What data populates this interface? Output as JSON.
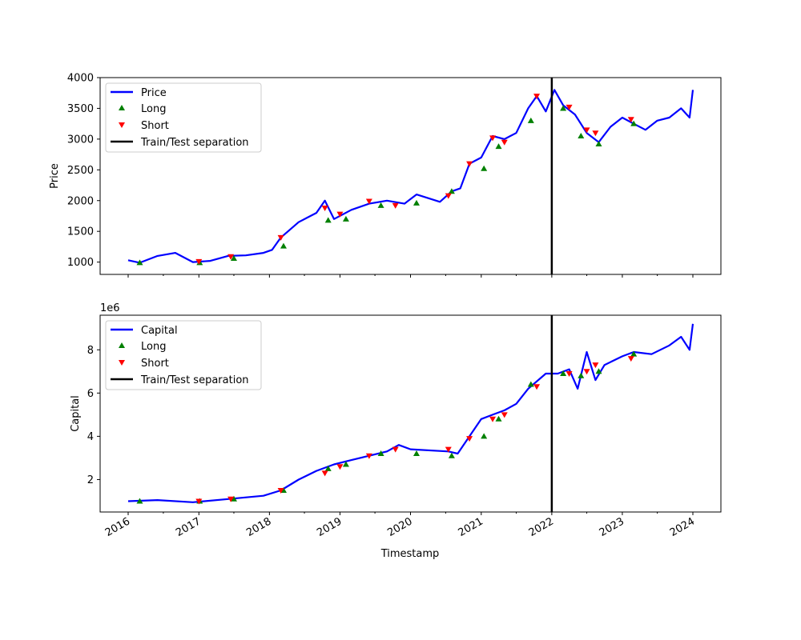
{
  "chart_data": [
    {
      "type": "line",
      "ylabel": "Price",
      "xlabel": "",
      "ylim": [
        800,
        4000
      ],
      "yticks": [
        1000,
        1500,
        2000,
        2500,
        3000,
        3500,
        4000
      ],
      "legend_placement": "top-left",
      "legend": [
        "Price",
        "Long",
        "Short",
        "Train/Test separation"
      ],
      "series": [
        {
          "name": "Price",
          "color": "#0000ff",
          "x": [
            "2016-01-01",
            "2016-03-01",
            "2016-06-01",
            "2016-09-01",
            "2016-12-01",
            "2017-03-01",
            "2017-06-01",
            "2017-09-01",
            "2017-12-01",
            "2018-01-15",
            "2018-03-01",
            "2018-06-01",
            "2018-09-01",
            "2018-10-15",
            "2018-12-01",
            "2019-03-01",
            "2019-06-01",
            "2019-09-01",
            "2019-12-01",
            "2020-02-01",
            "2020-06-01",
            "2020-08-01",
            "2020-09-15",
            "2020-11-01",
            "2021-01-01",
            "2021-03-01",
            "2021-05-01",
            "2021-07-01",
            "2021-09-01",
            "2021-10-15",
            "2021-12-01",
            "2022-01-15",
            "2022-03-01",
            "2022-05-01",
            "2022-07-01",
            "2022-09-01",
            "2022-11-01",
            "2023-01-01",
            "2023-03-01",
            "2023-05-01",
            "2023-07-01",
            "2023-09-01",
            "2023-11-01",
            "2023-12-15",
            "2024-01-01"
          ],
          "y": [
            1030,
            990,
            1100,
            1150,
            1000,
            1020,
            1100,
            1110,
            1150,
            1200,
            1400,
            1650,
            1800,
            2000,
            1700,
            1850,
            1950,
            2000,
            1950,
            2100,
            1980,
            2150,
            2200,
            2600,
            2700,
            3050,
            3000,
            3100,
            3500,
            3700,
            3450,
            3800,
            3550,
            3400,
            3100,
            2950,
            3200,
            3350,
            3250,
            3150,
            3300,
            3350,
            3500,
            3350,
            3800
          ]
        }
      ],
      "long_signals": {
        "color": "#008000",
        "x": [
          "2016-03-01",
          "2017-01-05",
          "2017-07-01",
          "2018-03-15",
          "2018-11-01",
          "2019-02-01",
          "2019-08-01",
          "2020-02-01",
          "2020-08-01",
          "2021-01-15",
          "2021-04-01",
          "2021-09-15",
          "2022-03-01",
          "2022-06-01",
          "2022-09-01",
          "2023-03-01"
        ],
        "y": [
          990,
          990,
          1060,
          1260,
          1680,
          1700,
          1920,
          1960,
          2150,
          2520,
          2880,
          3300,
          3500,
          3050,
          2920,
          3250
        ]
      },
      "short_signals": {
        "color": "#ff0000",
        "x": [
          "2017-01-01",
          "2017-06-15",
          "2018-03-01",
          "2018-10-15",
          "2019-01-01",
          "2019-06-01",
          "2019-10-15",
          "2020-07-15",
          "2020-11-01",
          "2021-03-01",
          "2021-05-01",
          "2021-10-15",
          "2022-04-01",
          "2022-07-01",
          "2022-08-15",
          "2023-02-15"
        ],
        "y": [
          1010,
          1090,
          1400,
          1880,
          1780,
          1990,
          1920,
          2080,
          2600,
          3020,
          2950,
          3700,
          3520,
          3150,
          3100,
          3320
        ]
      },
      "separation_x": "2022-01-01"
    },
    {
      "type": "line",
      "ylabel": "Capital",
      "xlabel": "Timestamp",
      "y_offset_label": "1e6",
      "ylim": [
        0.5,
        9.6
      ],
      "yticks": [
        2,
        4,
        6,
        8
      ],
      "xticks": [
        "2016",
        "2017",
        "2018",
        "2019",
        "2020",
        "2021",
        "2022",
        "2023",
        "2024"
      ],
      "legend_placement": "top-left",
      "legend": [
        "Capital",
        "Long",
        "Short",
        "Train/Test separation"
      ],
      "series": [
        {
          "name": "Capital",
          "color": "#0000ff",
          "x": [
            "2016-01-01",
            "2016-06-01",
            "2016-12-01",
            "2017-06-01",
            "2017-12-01",
            "2018-03-01",
            "2018-06-01",
            "2018-09-01",
            "2018-12-01",
            "2019-03-01",
            "2019-06-01",
            "2019-09-01",
            "2019-11-01",
            "2020-01-01",
            "2020-07-15",
            "2020-09-01",
            "2020-11-01",
            "2021-01-01",
            "2021-03-01",
            "2021-05-01",
            "2021-07-01",
            "2021-09-01",
            "2021-12-01",
            "2022-02-01",
            "2022-04-01",
            "2022-05-15",
            "2022-07-01",
            "2022-08-15",
            "2022-10-01",
            "2023-01-01",
            "2023-03-01",
            "2023-06-01",
            "2023-09-01",
            "2023-11-01",
            "2023-12-15",
            "2024-01-01"
          ],
          "y": [
            1.0,
            1.05,
            0.95,
            1.1,
            1.25,
            1.5,
            2.0,
            2.4,
            2.7,
            2.9,
            3.1,
            3.3,
            3.6,
            3.4,
            3.3,
            3.2,
            4.0,
            4.8,
            5.0,
            5.2,
            5.5,
            6.2,
            6.9,
            6.9,
            7.1,
            6.2,
            7.9,
            6.6,
            7.3,
            7.7,
            7.9,
            7.8,
            8.2,
            8.6,
            8.0,
            9.2
          ]
        }
      ],
      "long_signals": {
        "color": "#008000",
        "x": [
          "2016-03-01",
          "2017-01-05",
          "2017-07-01",
          "2018-03-15",
          "2018-11-01",
          "2019-02-01",
          "2019-08-01",
          "2020-02-01",
          "2020-08-01",
          "2021-01-15",
          "2021-04-01",
          "2021-09-15",
          "2022-03-01",
          "2022-06-01",
          "2022-09-01",
          "2023-03-01"
        ],
        "y": [
          1.0,
          1.0,
          1.1,
          1.5,
          2.5,
          2.7,
          3.2,
          3.2,
          3.1,
          4.0,
          4.8,
          6.4,
          6.9,
          6.8,
          7.0,
          7.8
        ]
      },
      "short_signals": {
        "color": "#ff0000",
        "x": [
          "2017-01-01",
          "2017-06-15",
          "2018-03-01",
          "2018-10-15",
          "2019-01-01",
          "2019-06-01",
          "2019-10-15",
          "2020-07-15",
          "2020-11-01",
          "2021-03-01",
          "2021-05-01",
          "2021-10-15",
          "2022-04-01",
          "2022-07-01",
          "2022-08-15",
          "2023-02-15"
        ],
        "y": [
          1.0,
          1.1,
          1.5,
          2.3,
          2.6,
          3.1,
          3.4,
          3.4,
          3.9,
          4.8,
          5.0,
          6.3,
          6.9,
          7.0,
          7.3,
          7.6
        ]
      },
      "separation_x": "2022-01-01"
    }
  ]
}
